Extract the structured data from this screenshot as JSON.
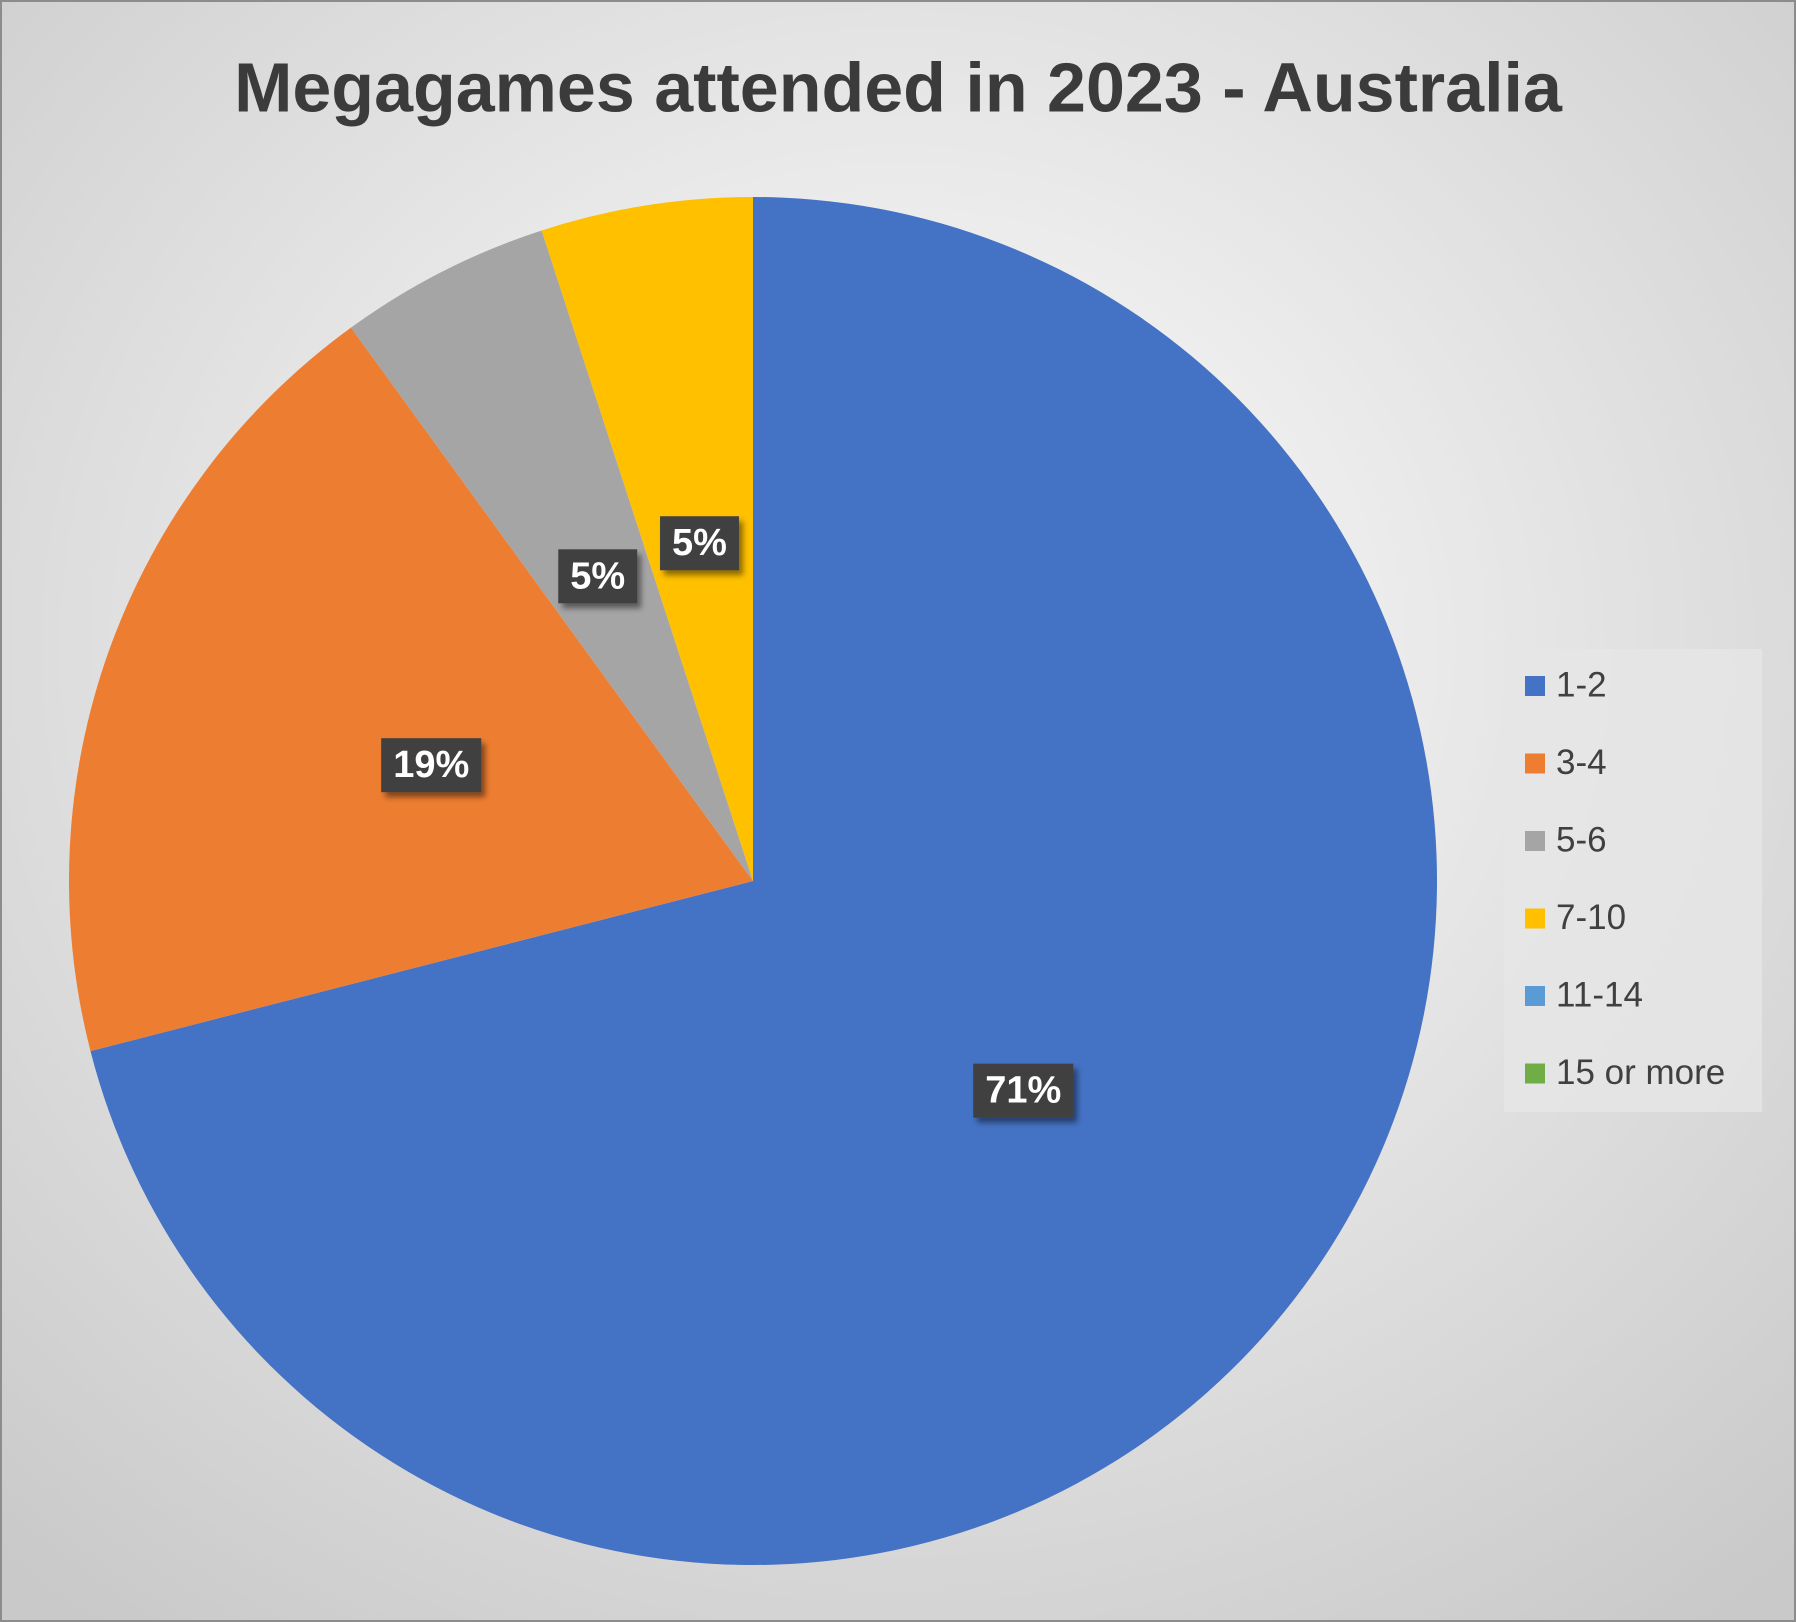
{
  "chart_data": {
    "type": "pie",
    "title": "Megagames attended in 2023 - Australia",
    "categories": [
      "1-2",
      "3-4",
      "5-6",
      "7-10",
      "11-14",
      "15 or more"
    ],
    "values": [
      71,
      19,
      5,
      5,
      0,
      0
    ],
    "value_labels": [
      "71%",
      "19%",
      "5%",
      "5%",
      null,
      null
    ],
    "colors": [
      "#4472c4",
      "#ed7d31",
      "#a5a5a5",
      "#ffc000",
      "#5b9bd5",
      "#70ad47"
    ],
    "legend": "right"
  }
}
